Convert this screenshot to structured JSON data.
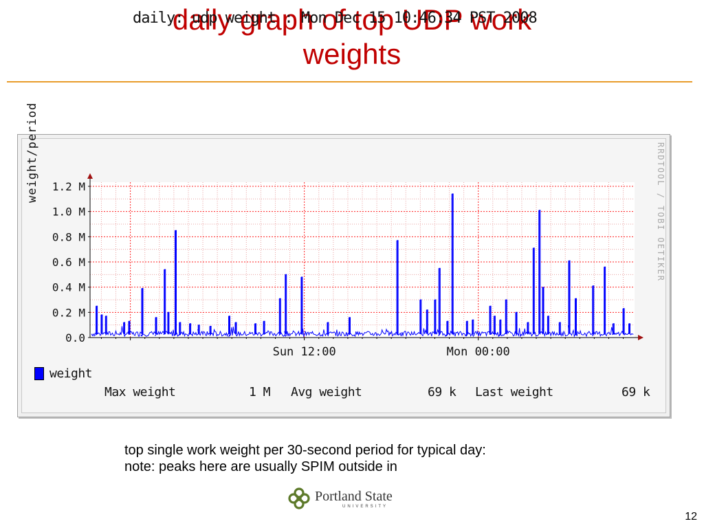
{
  "slide": {
    "title_line1": "daily graph of top UDP work",
    "title_line2": "weights",
    "caption_line1": "top single work weight per 30-second period for typical day:",
    "caption_line2": "note: peaks here are usually SPIM outside in",
    "logo_name": "Portland State",
    "logo_sub": "UNIVERSITY",
    "page_number": "12",
    "colors": {
      "title": "#c00000",
      "rule": "#e89c2a"
    }
  },
  "chart_data": {
    "type": "line",
    "title": "daily: udp weight : Mon Dec 15 10:46:34 PST 2008",
    "ylabel": "weight/period",
    "watermark": "RRDTOOL / TOBI OETIKER",
    "ylim": [
      0,
      1.2
    ],
    "yticks": [
      0,
      0.2,
      0.4,
      0.6,
      0.8,
      1.0,
      1.2
    ],
    "ytick_labels": [
      "0.0",
      "0.2 M",
      "0.4 M",
      "0.6 M",
      "0.8 M",
      "1.0 M",
      "1.2 M"
    ],
    "x_tick_labels": [
      {
        "label": "Sun 12:00",
        "hour": 12
      },
      {
        "label": "Mon 00:00",
        "hour": 24
      }
    ],
    "x_range_hours": [
      -2.78,
      34.78
    ],
    "grid": true,
    "legend": [
      {
        "name": "weight",
        "color": "#0000ff"
      }
    ],
    "series": [
      {
        "name": "weight",
        "color": "#0000ff",
        "baseline_approx": 0.03,
        "spikes": [
          {
            "hour": -2.35,
            "value": 0.25
          },
          {
            "hour": -2.0,
            "value": 0.18
          },
          {
            "hour": -1.7,
            "value": 0.17
          },
          {
            "hour": -0.45,
            "value": 0.12
          },
          {
            "hour": -0.1,
            "value": 0.13
          },
          {
            "hour": 0.8,
            "value": 0.39
          },
          {
            "hour": 1.75,
            "value": 0.16
          },
          {
            "hour": 2.35,
            "value": 0.54
          },
          {
            "hour": 2.6,
            "value": 0.2
          },
          {
            "hour": 3.1,
            "value": 0.85
          },
          {
            "hour": 3.4,
            "value": 0.12
          },
          {
            "hour": 4.1,
            "value": 0.11
          },
          {
            "hour": 4.7,
            "value": 0.1
          },
          {
            "hour": 5.5,
            "value": 0.09
          },
          {
            "hour": 6.8,
            "value": 0.17
          },
          {
            "hour": 7.25,
            "value": 0.12
          },
          {
            "hour": 8.6,
            "value": 0.11
          },
          {
            "hour": 9.2,
            "value": 0.13
          },
          {
            "hour": 10.3,
            "value": 0.31
          },
          {
            "hour": 10.7,
            "value": 0.5
          },
          {
            "hour": 11.8,
            "value": 0.48
          },
          {
            "hour": 13.6,
            "value": 0.12
          },
          {
            "hour": 15.1,
            "value": 0.16
          },
          {
            "hour": 18.4,
            "value": 0.77
          },
          {
            "hour": 20.0,
            "value": 0.3
          },
          {
            "hour": 20.45,
            "value": 0.22
          },
          {
            "hour": 21.0,
            "value": 0.3
          },
          {
            "hour": 21.3,
            "value": 0.55
          },
          {
            "hour": 21.85,
            "value": 0.13
          },
          {
            "hour": 22.2,
            "value": 1.14
          },
          {
            "hour": 23.2,
            "value": 0.13
          },
          {
            "hour": 23.6,
            "value": 0.14
          },
          {
            "hour": 24.8,
            "value": 0.25
          },
          {
            "hour": 25.1,
            "value": 0.17
          },
          {
            "hour": 25.5,
            "value": 0.14
          },
          {
            "hour": 25.9,
            "value": 0.3
          },
          {
            "hour": 26.6,
            "value": 0.2
          },
          {
            "hour": 27.4,
            "value": 0.12
          },
          {
            "hour": 27.8,
            "value": 0.71
          },
          {
            "hour": 28.2,
            "value": 1.01
          },
          {
            "hour": 28.45,
            "value": 0.4
          },
          {
            "hour": 28.8,
            "value": 0.17
          },
          {
            "hour": 29.6,
            "value": 0.12
          },
          {
            "hour": 30.25,
            "value": 0.61
          },
          {
            "hour": 30.7,
            "value": 0.31
          },
          {
            "hour": 31.9,
            "value": 0.41
          },
          {
            "hour": 32.7,
            "value": 0.56
          },
          {
            "hour": 33.3,
            "value": 0.11
          },
          {
            "hour": 34.0,
            "value": 0.23
          },
          {
            "hour": 34.4,
            "value": 0.11
          }
        ]
      }
    ],
    "stats": {
      "max_label": "Max weight",
      "max_value": "1 M",
      "avg_label": "Avg weight",
      "avg_value": "69 k",
      "last_label": "Last weight",
      "last_value": "69 k"
    }
  }
}
